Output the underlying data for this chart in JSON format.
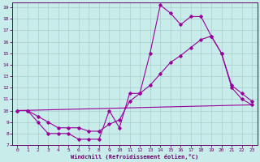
{
  "bg_color": "#c8ecea",
  "line_color": "#990099",
  "grid_color": "#aacccc",
  "xlabel": "Windchill (Refroidissement éolien,°C)",
  "xlabel_color": "#660066",
  "tick_color": "#660066",
  "axis_color": "#660066",
  "xlim": [
    -0.5,
    23.5
  ],
  "ylim": [
    7,
    19.4
  ],
  "xticks": [
    0,
    1,
    2,
    3,
    4,
    5,
    6,
    7,
    8,
    9,
    10,
    11,
    12,
    13,
    14,
    15,
    16,
    17,
    18,
    19,
    20,
    21,
    22,
    23
  ],
  "yticks": [
    7,
    8,
    9,
    10,
    11,
    12,
    13,
    14,
    15,
    16,
    17,
    18,
    19
  ],
  "series1_x": [
    0,
    1,
    2,
    3,
    4,
    5,
    6,
    7,
    8,
    9,
    10,
    11,
    12,
    13,
    14,
    15,
    16,
    17,
    18,
    19,
    20,
    21,
    22,
    23
  ],
  "series1_y": [
    10,
    10,
    9,
    8,
    8,
    8,
    7.5,
    7.5,
    7.5,
    10,
    8.5,
    11.5,
    11.5,
    15,
    19.2,
    18.5,
    17.5,
    18.2,
    18.2,
    16.5,
    15,
    12,
    11,
    10.5
  ],
  "series2_x": [
    0,
    1,
    2,
    3,
    4,
    5,
    6,
    7,
    8,
    9,
    10,
    11,
    12,
    13,
    14,
    15,
    16,
    17,
    18,
    19,
    20,
    21,
    22,
    23
  ],
  "series2_y": [
    10,
    10,
    9.5,
    9,
    8.5,
    8.5,
    8.5,
    8.2,
    8.2,
    8.8,
    9.2,
    10.8,
    11.5,
    12.2,
    13.2,
    14.2,
    14.8,
    15.5,
    16.2,
    16.5,
    15,
    12.2,
    11.5,
    10.8
  ],
  "series3_x": [
    0,
    23
  ],
  "series3_y": [
    10,
    10.5
  ]
}
